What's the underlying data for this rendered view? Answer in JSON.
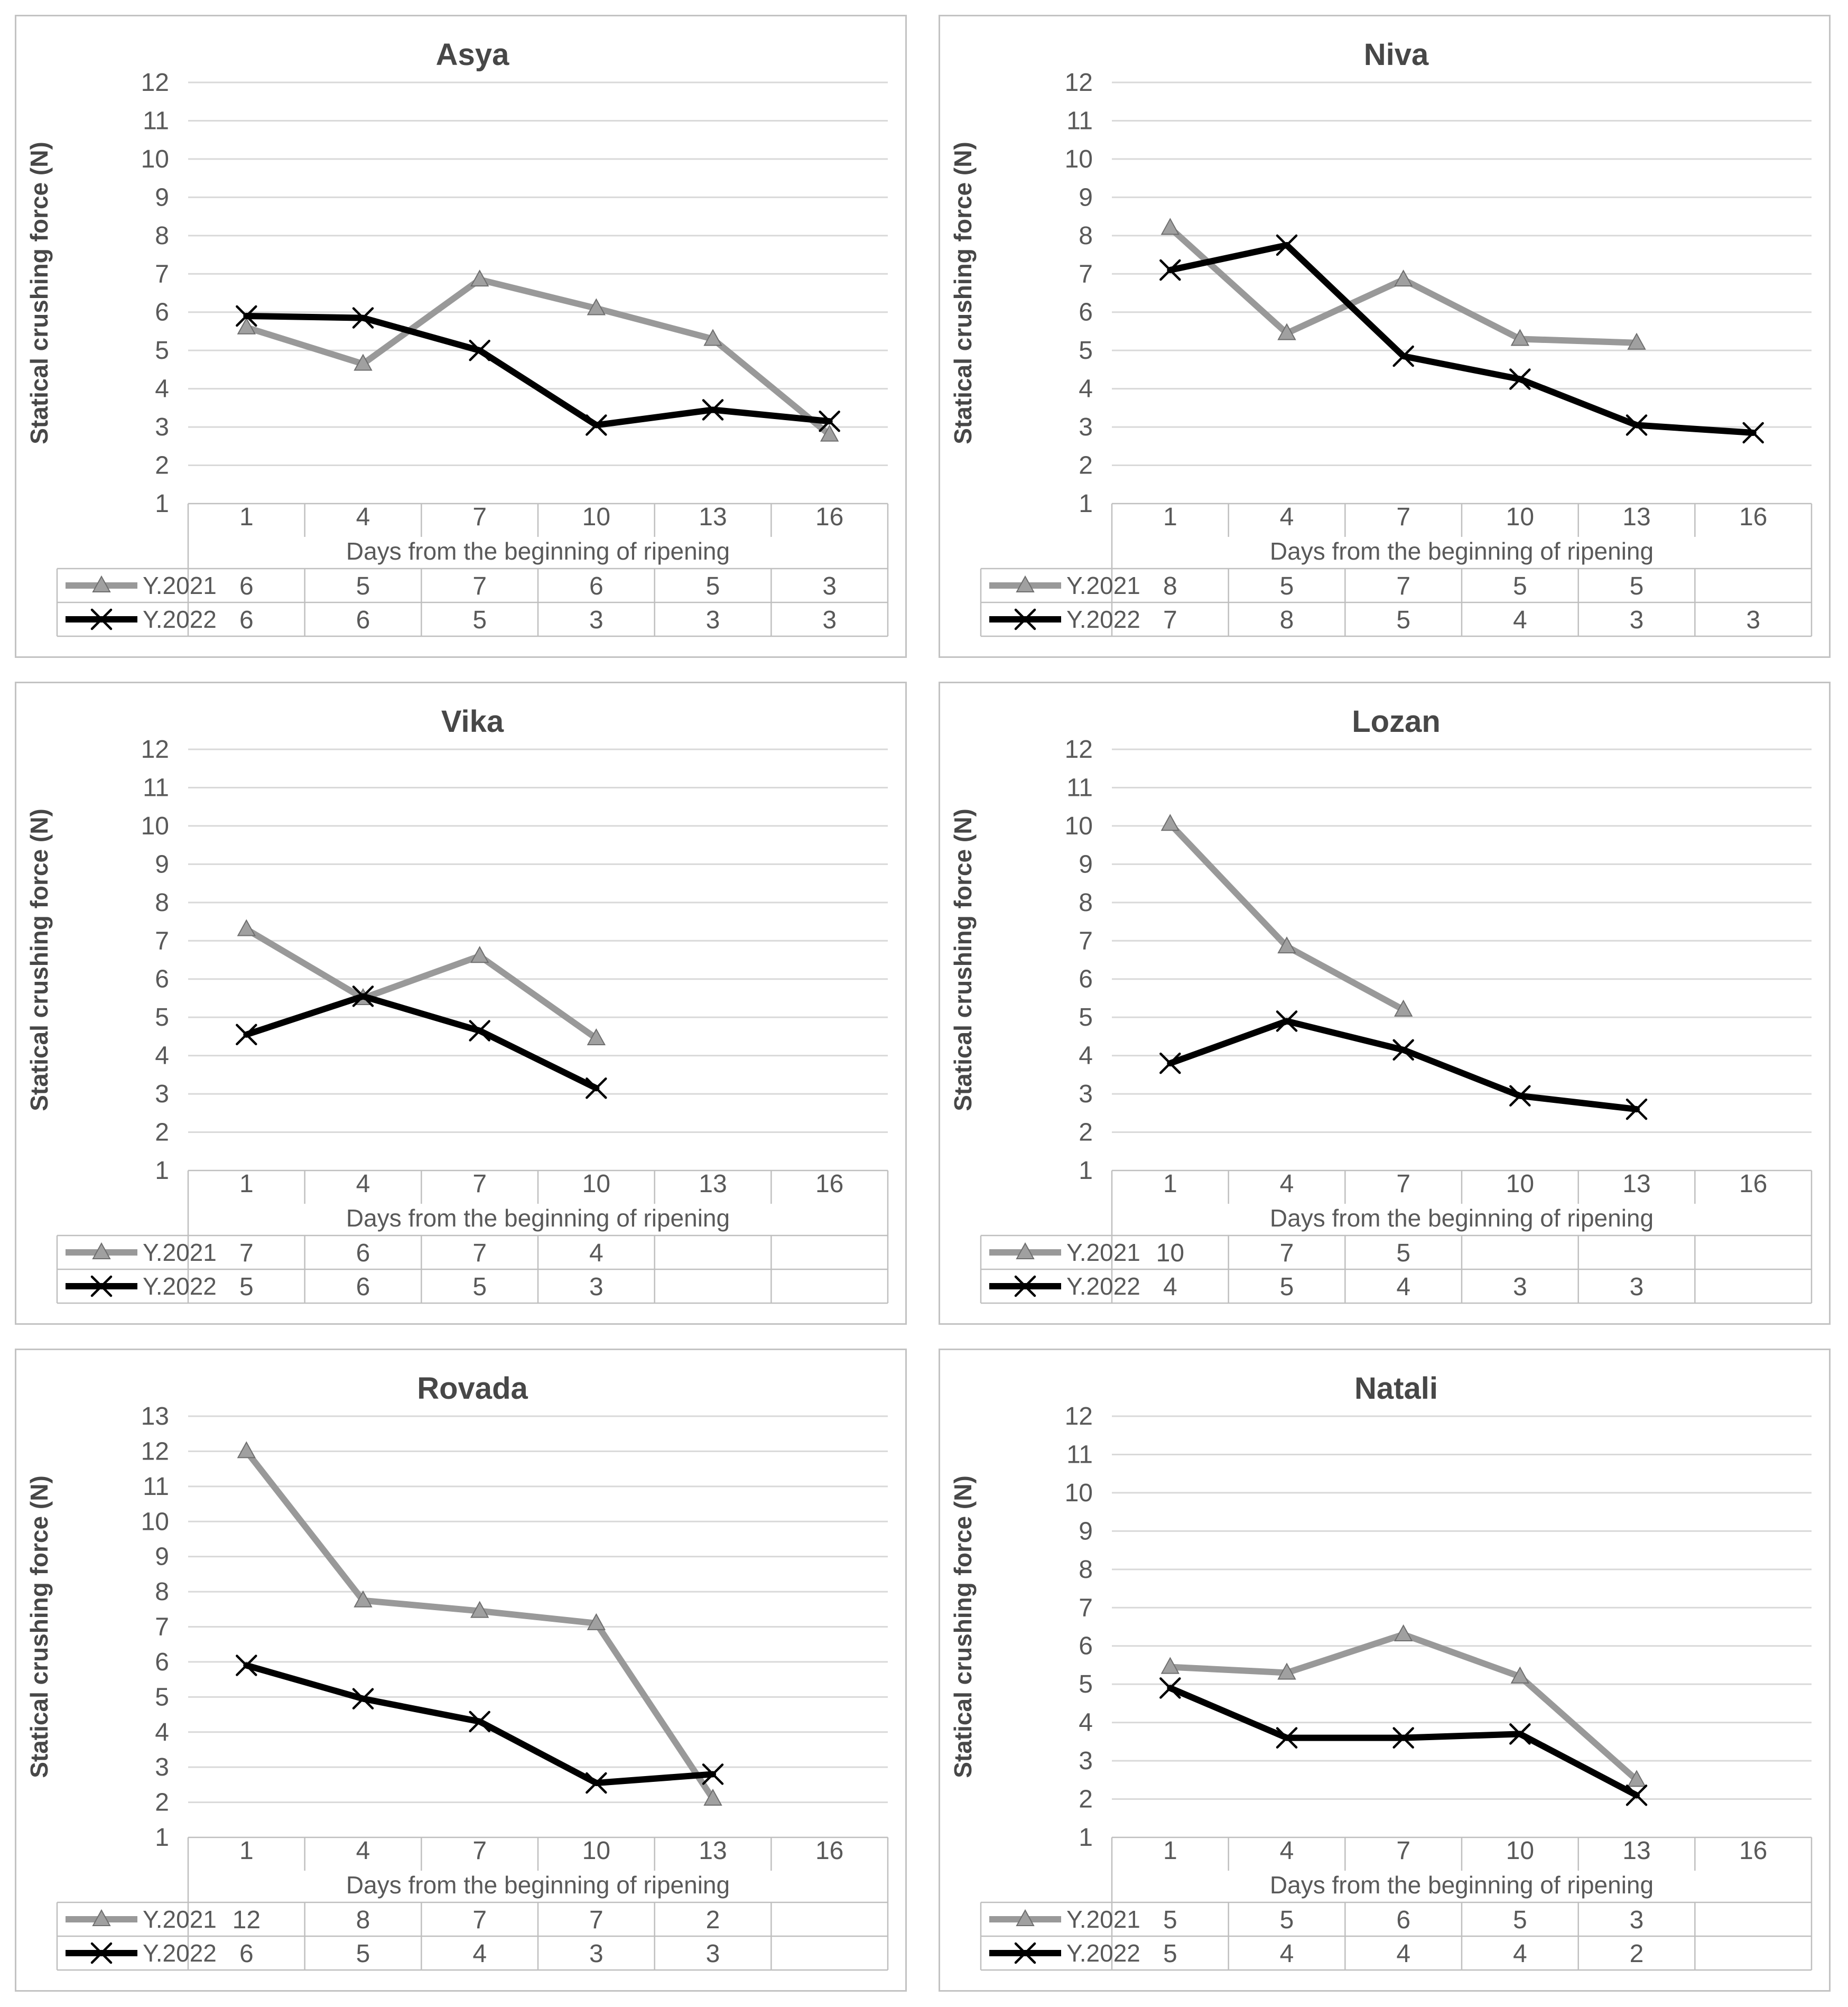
{
  "page": {
    "background": "#ffffff",
    "description": "Figure with six line charts of statical crushing force during ripening for two years"
  },
  "style": {
    "panel_border": "#c3c3c3",
    "table_border": "#bfbfbf",
    "grid_color": "#d9d9d9",
    "text_color": "#595959",
    "title_color": "#474747",
    "series_2021_color": "#999999",
    "series_2021_marker_fill": "#a0a0a0",
    "series_2021_marker_edge": "#6e6e6e",
    "series_2022_color": "#000000"
  },
  "chart_data": [
    {
      "type": "line",
      "title": "Asya",
      "xlabel": "Days from the beginning of ripening",
      "ylabel": "Statical crushing force (N)",
      "categories": [
        1,
        4,
        7,
        10,
        13,
        16
      ],
      "ylim": [
        1,
        12
      ],
      "grid": "horizontal-only",
      "legend_position": "data-table-left",
      "series": [
        {
          "name": "Y.2021",
          "color": "#999999",
          "marker": "triangle",
          "values": [
            5.6,
            4.65,
            6.85,
            6.1,
            5.3,
            2.8
          ],
          "table_values": [
            "6",
            "5",
            "7",
            "6",
            "5",
            "3"
          ]
        },
        {
          "name": "Y.2022",
          "color": "#000000",
          "marker": "x",
          "values": [
            5.9,
            5.85,
            5.0,
            3.05,
            3.45,
            3.15
          ],
          "table_values": [
            "6",
            "6",
            "5",
            "3",
            "3",
            "3"
          ]
        }
      ]
    },
    {
      "type": "line",
      "title": "Niva",
      "xlabel": "Days from the beginning of ripening",
      "ylabel": "Statical crushing force (N)",
      "categories": [
        1,
        4,
        7,
        10,
        13,
        16
      ],
      "ylim": [
        1,
        12
      ],
      "grid": "horizontal-only",
      "legend_position": "data-table-left",
      "series": [
        {
          "name": "Y.2021",
          "color": "#999999",
          "marker": "triangle",
          "values": [
            8.2,
            5.45,
            6.85,
            5.3,
            5.2,
            null
          ],
          "table_values": [
            "8",
            "5",
            "7",
            "5",
            "5",
            ""
          ]
        },
        {
          "name": "Y.2022",
          "color": "#000000",
          "marker": "x",
          "values": [
            7.1,
            7.75,
            4.85,
            4.25,
            3.05,
            2.85
          ],
          "table_values": [
            "7",
            "8",
            "5",
            "4",
            "3",
            "3"
          ]
        }
      ]
    },
    {
      "type": "line",
      "title": "Vika",
      "xlabel": "Days from the beginning of ripening",
      "ylabel": "Statical crushing force (N)",
      "categories": [
        1,
        4,
        7,
        10,
        13,
        16
      ],
      "ylim": [
        1,
        12
      ],
      "grid": "horizontal-only",
      "legend_position": "data-table-left",
      "series": [
        {
          "name": "Y.2021",
          "color": "#999999",
          "marker": "triangle",
          "values": [
            7.3,
            5.5,
            6.6,
            4.45,
            null,
            null
          ],
          "table_values": [
            "7",
            "6",
            "7",
            "4",
            "",
            ""
          ]
        },
        {
          "name": "Y.2022",
          "color": "#000000",
          "marker": "x",
          "values": [
            4.55,
            5.55,
            4.65,
            3.15,
            null,
            null
          ],
          "table_values": [
            "5",
            "6",
            "5",
            "3",
            "",
            ""
          ]
        }
      ]
    },
    {
      "type": "line",
      "title": "Lozan",
      "xlabel": "Days from the beginning of ripening",
      "ylabel": "Statical crushing force (N)",
      "categories": [
        1,
        4,
        7,
        10,
        13,
        16
      ],
      "ylim": [
        1,
        12
      ],
      "grid": "horizontal-only",
      "legend_position": "data-table-left",
      "series": [
        {
          "name": "Y.2021",
          "color": "#999999",
          "marker": "triangle",
          "values": [
            10.05,
            6.85,
            5.2,
            null,
            null,
            null
          ],
          "table_values": [
            "10",
            "7",
            "5",
            "",
            "",
            ""
          ]
        },
        {
          "name": "Y.2022",
          "color": "#000000",
          "marker": "x",
          "values": [
            3.8,
            4.9,
            4.15,
            2.95,
            2.6,
            null
          ],
          "table_values": [
            "4",
            "5",
            "4",
            "3",
            "3",
            ""
          ]
        }
      ]
    },
    {
      "type": "line",
      "title": "Rovada",
      "xlabel": "Days from the beginning of ripening",
      "ylabel": "Statical crushing force (N)",
      "categories": [
        1,
        4,
        7,
        10,
        13,
        16
      ],
      "ylim": [
        1,
        13
      ],
      "grid": "horizontal-only",
      "legend_position": "data-table-left",
      "series": [
        {
          "name": "Y.2021",
          "color": "#999999",
          "marker": "triangle",
          "values": [
            12.0,
            7.75,
            7.45,
            7.1,
            2.1,
            null
          ],
          "table_values": [
            "12",
            "8",
            "7",
            "7",
            "2",
            ""
          ]
        },
        {
          "name": "Y.2022",
          "color": "#000000",
          "marker": "x",
          "values": [
            5.9,
            4.95,
            4.3,
            2.55,
            2.8,
            null
          ],
          "table_values": [
            "6",
            "5",
            "4",
            "3",
            "3",
            ""
          ]
        }
      ]
    },
    {
      "type": "line",
      "title": "Natali",
      "xlabel": "Days from the beginning of ripening",
      "ylabel": "Statical crushing force (N)",
      "categories": [
        1,
        4,
        7,
        10,
        13,
        16
      ],
      "ylim": [
        1,
        12
      ],
      "grid": "horizontal-only",
      "legend_position": "data-table-left",
      "series": [
        {
          "name": "Y.2021",
          "color": "#999999",
          "marker": "triangle",
          "values": [
            5.45,
            5.3,
            6.3,
            5.2,
            2.5,
            null
          ],
          "table_values": [
            "5",
            "5",
            "6",
            "5",
            "3",
            ""
          ]
        },
        {
          "name": "Y.2022",
          "color": "#000000",
          "marker": "x",
          "values": [
            4.9,
            3.6,
            3.6,
            3.7,
            2.1,
            null
          ],
          "table_values": [
            "5",
            "4",
            "4",
            "4",
            "2",
            ""
          ]
        }
      ]
    }
  ]
}
